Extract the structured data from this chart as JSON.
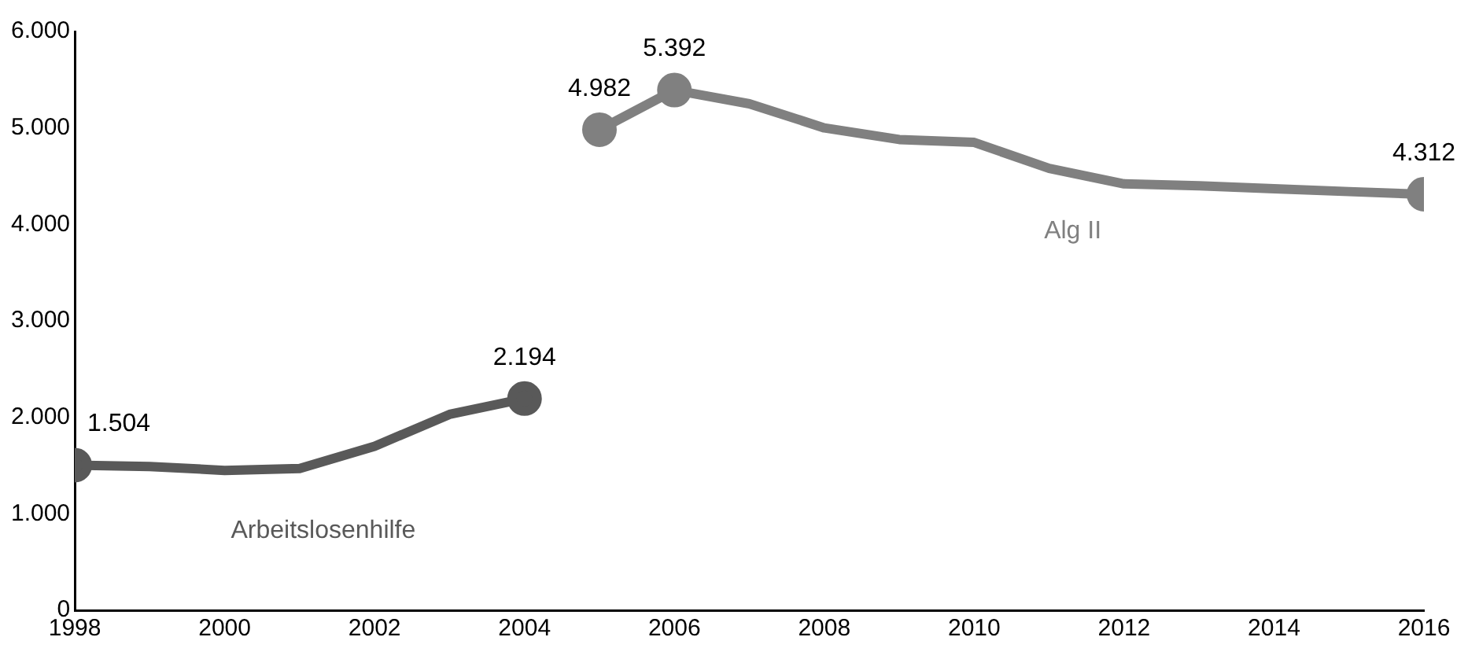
{
  "chart_data": {
    "type": "line",
    "x": [
      1998,
      1999,
      2000,
      2001,
      2002,
      2003,
      2004,
      2005,
      2006,
      2007,
      2008,
      2009,
      2010,
      2011,
      2012,
      2013,
      2014,
      2015,
      2016
    ],
    "series": [
      {
        "name": "Arbeitslosenhilfe",
        "color": "#595959",
        "values": [
          1504,
          1490,
          1450,
          1470,
          1700,
          2030,
          2194,
          null,
          null,
          null,
          null,
          null,
          null,
          null,
          null,
          null,
          null,
          null,
          null
        ],
        "value_labels": [
          "1.504",
          null,
          null,
          null,
          null,
          null,
          "2.194",
          null,
          null,
          null,
          null,
          null,
          null,
          null,
          null,
          null,
          null,
          null,
          null
        ]
      },
      {
        "name": "Alg II",
        "color": "#808080",
        "values": [
          null,
          null,
          null,
          null,
          null,
          null,
          null,
          4982,
          5392,
          5250,
          5000,
          4880,
          4850,
          4580,
          4420,
          4400,
          4370,
          4340,
          4312
        ],
        "value_labels": [
          null,
          null,
          null,
          null,
          null,
          null,
          null,
          "4.982",
          "5.392",
          null,
          null,
          null,
          null,
          null,
          null,
          null,
          null,
          null,
          "4.312"
        ]
      }
    ],
    "xlim": [
      1998,
      2016
    ],
    "xticks": [
      1998,
      2000,
      2002,
      2004,
      2006,
      2008,
      2010,
      2012,
      2014,
      2016
    ],
    "ylim": [
      0,
      6000
    ],
    "yticks": [
      {
        "value": 0,
        "label": "0"
      },
      {
        "value": 1000,
        "label": "1.000"
      },
      {
        "value": 2000,
        "label": "2.000"
      },
      {
        "value": 3000,
        "label": "3.000"
      },
      {
        "value": 4000,
        "label": "4.000"
      },
      {
        "value": 5000,
        "label": "5.000"
      },
      {
        "value": 6000,
        "label": "6.000"
      }
    ],
    "grid": false,
    "legend": false
  }
}
